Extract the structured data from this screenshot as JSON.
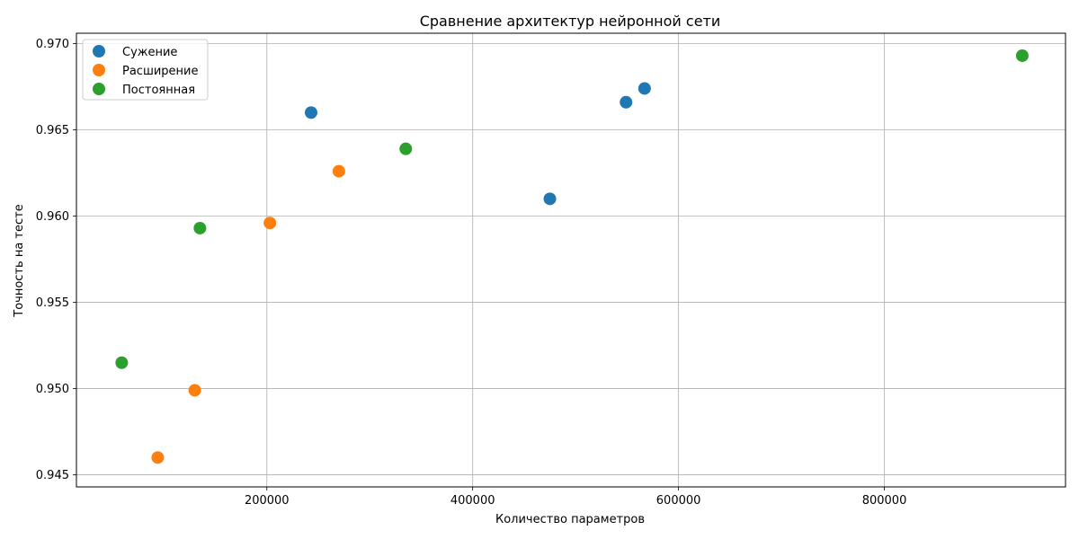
{
  "chart_data": {
    "type": "scatter",
    "title": "Сравнение архитектур нейронной сети",
    "xlabel": "Количество параметров",
    "ylabel": "Точность на тесте",
    "xlim": [
      15000,
      976000
    ],
    "ylim": [
      0.9443,
      0.9706
    ],
    "xticks": [
      200000,
      400000,
      600000,
      800000
    ],
    "xtick_labels": [
      "200000",
      "400000",
      "600000",
      "800000"
    ],
    "yticks": [
      0.945,
      0.95,
      0.955,
      0.96,
      0.965,
      0.97
    ],
    "ytick_labels": [
      "0.945",
      "0.950",
      "0.955",
      "0.960",
      "0.965",
      "0.970"
    ],
    "grid": true,
    "legend_position": "top-left",
    "series": [
      {
        "name": "Сужение",
        "color": "#1f77b4",
        "points": [
          {
            "x": 243000,
            "y": 0.966
          },
          {
            "x": 475000,
            "y": 0.961
          },
          {
            "x": 549000,
            "y": 0.9666
          },
          {
            "x": 567000,
            "y": 0.9674
          }
        ]
      },
      {
        "name": "Расширение",
        "color": "#ff7f0e",
        "points": [
          {
            "x": 94000,
            "y": 0.946
          },
          {
            "x": 130000,
            "y": 0.9499
          },
          {
            "x": 203000,
            "y": 0.9596
          },
          {
            "x": 270000,
            "y": 0.9626
          }
        ]
      },
      {
        "name": "Постоянная",
        "color": "#2ca02c",
        "points": [
          {
            "x": 59000,
            "y": 0.9515
          },
          {
            "x": 135000,
            "y": 0.9593
          },
          {
            "x": 335000,
            "y": 0.9639
          },
          {
            "x": 934000,
            "y": 0.9693
          }
        ]
      }
    ]
  }
}
